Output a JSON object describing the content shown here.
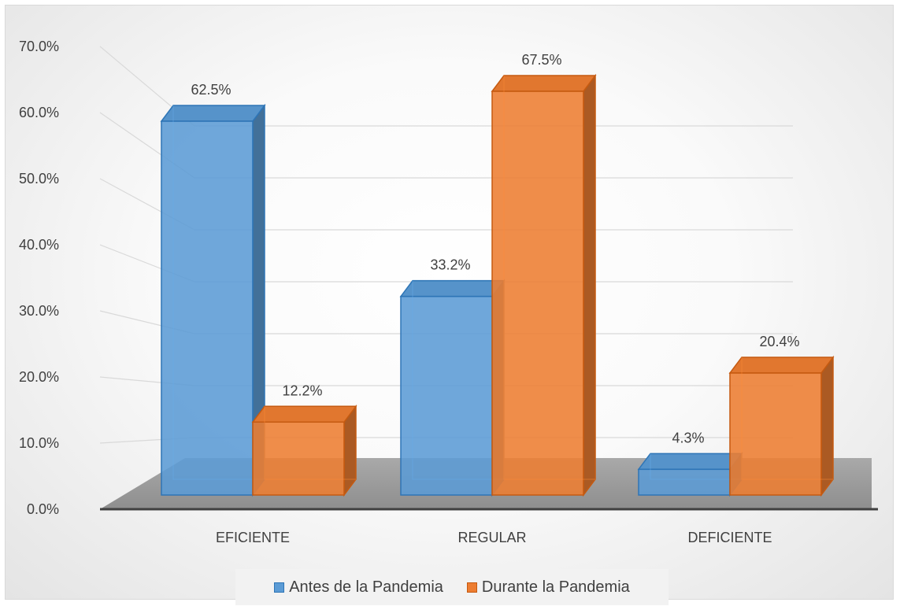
{
  "chart_data": {
    "type": "bar",
    "categories": [
      "EFICIENTE",
      "REGULAR",
      "DEFICIENTE"
    ],
    "series": [
      {
        "name": "Antes de la Pandemia",
        "values": [
          62.5,
          33.2,
          4.3
        ],
        "labels": [
          "62.5%",
          "33.2%",
          "4.3%"
        ],
        "color": "#5b9bd5",
        "edge": "#2e75b6"
      },
      {
        "name": "Durante la Pandemia",
        "values": [
          12.2,
          67.5,
          20.4
        ],
        "labels": [
          "12.2%",
          "67.5%",
          "20.4%"
        ],
        "color": "#ed7d31",
        "edge": "#c55a11"
      }
    ],
    "ylim": [
      0,
      70
    ],
    "yticks": [
      "0.0%",
      "10.0%",
      "20.0%",
      "30.0%",
      "40.0%",
      "50.0%",
      "60.0%",
      "70.0%"
    ],
    "grid": true,
    "legend": "bottom",
    "style": "3d-column"
  }
}
